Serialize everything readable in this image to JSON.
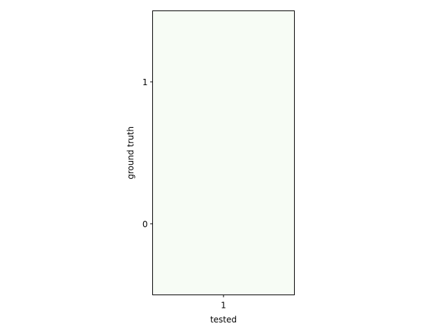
{
  "chart_data": {
    "type": "heatmap",
    "title": "",
    "xlabel": "tested",
    "ylabel": "ground truth",
    "x_categories": [
      "1"
    ],
    "y_categories": [
      "0",
      "1"
    ],
    "values": [
      [
        0
      ],
      [
        0
      ]
    ],
    "colormap": "Greens",
    "cell_color": "#f7fcf5",
    "grid": false,
    "legend": "none"
  }
}
